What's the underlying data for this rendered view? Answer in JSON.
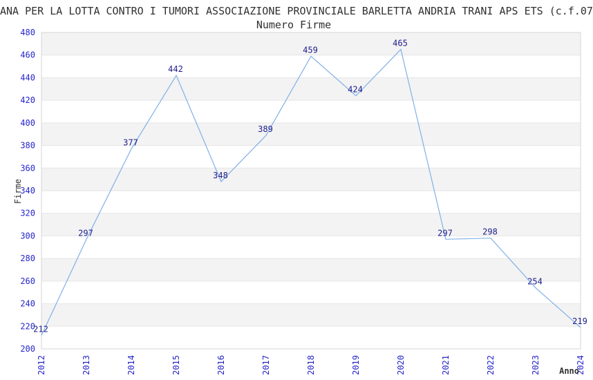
{
  "header": {
    "title": "ANA PER LA LOTTA CONTRO I TUMORI ASSOCIAZIONE PROVINCIALE BARLETTA ANDRIA TRANI APS ETS (c.f.07",
    "subtitle": "Numero Firme"
  },
  "chart_data": {
    "type": "line",
    "title": "Numero Firme",
    "categories": [
      "2012",
      "2013",
      "2014",
      "2015",
      "2016",
      "2017",
      "2018",
      "2019",
      "2020",
      "2021",
      "2022",
      "2023",
      "2024"
    ],
    "series": [
      {
        "name": "Numero Firme",
        "values": [
          212,
          297,
          377,
          442,
          348,
          389,
          459,
          424,
          465,
          297,
          298,
          254,
          219
        ]
      }
    ],
    "xlabel": "Anno",
    "ylabel": "Firme",
    "ylim": [
      200,
      480
    ],
    "ytick_step": 20,
    "grid": "horizontal-bands-alternating",
    "legend": "none",
    "data_labels": "on",
    "colors": {
      "line": "#7fb0e8",
      "tick_label": "#2525cc",
      "data_label": "#1d1d8c",
      "band_gray": "#f3f3f3",
      "gridline": "#e6e6e6",
      "border": "#d4d4d4",
      "text": "#303030"
    }
  }
}
